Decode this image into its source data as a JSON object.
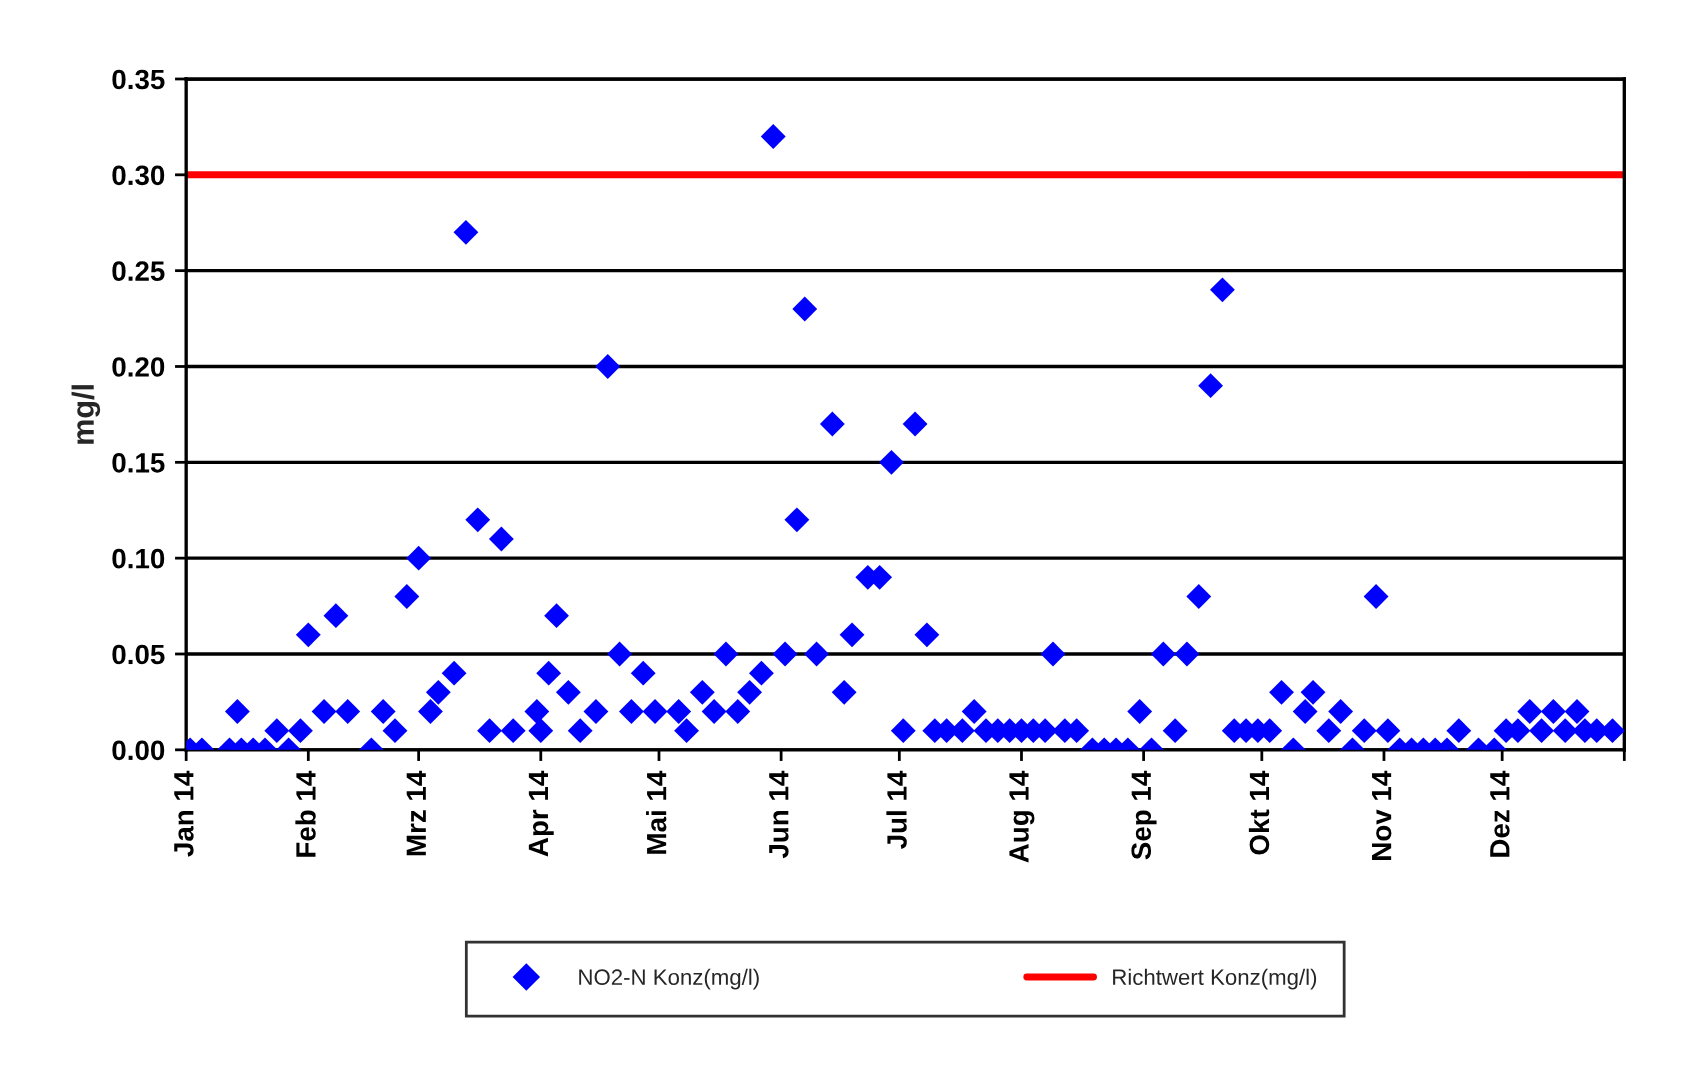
{
  "chart_data": {
    "type": "scatter",
    "ylabel": "mg/l",
    "x": [
      "2014-01-02",
      "2014-01-05",
      "2014-01-12",
      "2014-01-14",
      "2014-01-15",
      "2014-01-18",
      "2014-01-21",
      "2014-01-24",
      "2014-01-27",
      "2014-01-30",
      "2014-02-01",
      "2014-02-05",
      "2014-02-08",
      "2014-02-11",
      "2014-02-17",
      "2014-02-20",
      "2014-02-23",
      "2014-02-26",
      "2014-03-01",
      "2014-03-04",
      "2014-03-06",
      "2014-03-10",
      "2014-03-13",
      "2014-03-16",
      "2014-03-19",
      "2014-03-22",
      "2014-03-25",
      "2014-03-31",
      "2014-04-01",
      "2014-04-03",
      "2014-04-05",
      "2014-04-08",
      "2014-04-11",
      "2014-04-15",
      "2014-04-18",
      "2014-04-21",
      "2014-04-24",
      "2014-04-27",
      "2014-04-30",
      "2014-05-06",
      "2014-05-08",
      "2014-05-12",
      "2014-05-15",
      "2014-05-18",
      "2014-05-21",
      "2014-05-24",
      "2014-05-27",
      "2014-05-30",
      "2014-06-02",
      "2014-06-05",
      "2014-06-07",
      "2014-06-10",
      "2014-06-14",
      "2014-06-17",
      "2014-06-19",
      "2014-06-23",
      "2014-06-26",
      "2014-06-29",
      "2014-07-02",
      "2014-07-05",
      "2014-07-08",
      "2014-07-10",
      "2014-07-13",
      "2014-07-17",
      "2014-07-20",
      "2014-07-23",
      "2014-07-26",
      "2014-07-29",
      "2014-08-01",
      "2014-08-04",
      "2014-08-07",
      "2014-08-09",
      "2014-08-12",
      "2014-08-15",
      "2014-08-19",
      "2014-08-22",
      "2014-08-25",
      "2014-08-28",
      "2014-08-31",
      "2014-09-03",
      "2014-09-06",
      "2014-09-09",
      "2014-09-12",
      "2014-09-15",
      "2014-09-18",
      "2014-09-21",
      "2014-09-24",
      "2014-09-27",
      "2014-09-30",
      "2014-10-03",
      "2014-10-06",
      "2014-10-09",
      "2014-10-12",
      "2014-10-14",
      "2014-10-18",
      "2014-10-21",
      "2014-10-24",
      "2014-10-27",
      "2014-10-30",
      "2014-11-02",
      "2014-11-05",
      "2014-11-08",
      "2014-11-11",
      "2014-11-14",
      "2014-11-17",
      "2014-11-20",
      "2014-11-25",
      "2014-11-29",
      "2014-12-02",
      "2014-12-05",
      "2014-12-08",
      "2014-12-11",
      "2014-12-14",
      "2014-12-17",
      "2014-12-20",
      "2014-12-22",
      "2014-12-25",
      "2014-12-29"
    ],
    "series": [
      {
        "name": "NO2-N Konz(mg/l)",
        "color": "#0000ff",
        "values": [
          0,
          0,
          0,
          0.02,
          0,
          0,
          0,
          0.01,
          0,
          0.01,
          0.06,
          0.02,
          0.07,
          0.02,
          0,
          0.02,
          0.01,
          0.08,
          0.1,
          0.02,
          0.03,
          0.04,
          0.27,
          0.12,
          0.01,
          0.11,
          0.01,
          0.02,
          0.01,
          0.04,
          0.07,
          0.03,
          0.01,
          0.02,
          0.2,
          0.05,
          0.02,
          0.04,
          0.02,
          0.02,
          0.01,
          0.03,
          0.02,
          0.05,
          0.02,
          0.03,
          0.04,
          0.32,
          0.05,
          0.12,
          0.23,
          0.05,
          0.17,
          0.03,
          0.06,
          0.09,
          0.09,
          0.15,
          0.01,
          0.17,
          0.06,
          0.01,
          0.01,
          0.01,
          0.02,
          0.01,
          0.01,
          0.01,
          0.01,
          0.01,
          0.01,
          0.05,
          0.01,
          0.01,
          0,
          0,
          0,
          0,
          0.02,
          0,
          0.05,
          0.01,
          0.05,
          0.08,
          0.19,
          0.24,
          0.01,
          0.01,
          0.01,
          0.01,
          0.03,
          0,
          0.02,
          0.03,
          0.01,
          0.02,
          0,
          0.01,
          0.08,
          0.01,
          0,
          0,
          0,
          0,
          0,
          0.01,
          0,
          0,
          0.01,
          0.01,
          0.02,
          0.01,
          0.02,
          0.01,
          0.02,
          0.01,
          0.01,
          0.01
        ]
      }
    ],
    "ref_lines": [
      {
        "axis": "y",
        "value": 0.3,
        "label": "Richtwert Konz(mg/l)",
        "color": "#ff0000",
        "line_style": "solid"
      }
    ],
    "xlim": [
      "2014-01-01",
      "2015-01-01"
    ],
    "xticks": [
      {
        "value": "2014-01-01",
        "label": "Jan 14"
      },
      {
        "value": "2014-02-01",
        "label": "Feb 14"
      },
      {
        "value": "2014-03-01",
        "label": "Mrz 14"
      },
      {
        "value": "2014-04-01",
        "label": "Apr 14"
      },
      {
        "value": "2014-05-01",
        "label": "Mai 14"
      },
      {
        "value": "2014-06-01",
        "label": "Jun 14"
      },
      {
        "value": "2014-07-01",
        "label": "Jul 14"
      },
      {
        "value": "2014-08-01",
        "label": "Aug 14"
      },
      {
        "value": "2014-09-01",
        "label": "Sep 14"
      },
      {
        "value": "2014-10-01",
        "label": "Okt 14"
      },
      {
        "value": "2014-11-01",
        "label": "Nov 14"
      },
      {
        "value": "2014-12-01",
        "label": "Dez 14"
      },
      {
        "value": "2015-01-01",
        "label": null
      }
    ],
    "ylim": [
      0,
      0.35
    ],
    "yticks": [
      {
        "value": 0,
        "label": "0.00"
      },
      {
        "value": 0.05,
        "label": "0.05"
      },
      {
        "value": 0.1,
        "label": "0.10"
      },
      {
        "value": 0.15,
        "label": "0.15"
      },
      {
        "value": 0.2,
        "label": "0.20"
      },
      {
        "value": 0.25,
        "label": "0.25"
      },
      {
        "value": 0.3,
        "label": "0.30"
      },
      {
        "value": 0.35,
        "label": "0.35"
      }
    ],
    "grid": "y",
    "legend": "bottom",
    "marker": "diamond"
  }
}
